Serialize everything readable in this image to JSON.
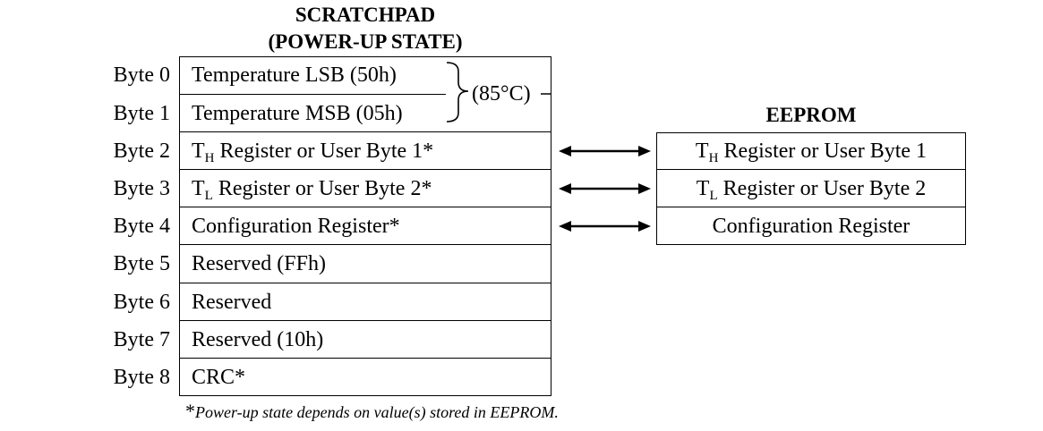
{
  "scratchpad": {
    "title_line1": "SCRATCHPAD",
    "title_line2": "(POWER-UP STATE)",
    "rows": [
      {
        "byte": "Byte 0",
        "text": "Temperature LSB (50h)"
      },
      {
        "byte": "Byte 1",
        "text": "Temperature MSB (05h)"
      },
      {
        "byte": "Byte 2",
        "prefix": "T",
        "sub": "H",
        "text": " Register or User Byte 1*"
      },
      {
        "byte": "Byte 3",
        "prefix": "T",
        "sub": "L",
        "text": " Register or User Byte 2*"
      },
      {
        "byte": "Byte 4",
        "text": "Configuration Register*"
      },
      {
        "byte": "Byte 5",
        "text": "Reserved (FFh)"
      },
      {
        "byte": "Byte 6",
        "text": "Reserved"
      },
      {
        "byte": "Byte 7",
        "text": "Reserved (10h)"
      },
      {
        "byte": "Byte 8",
        "text": "CRC*"
      }
    ],
    "brace_label": "(85°C)"
  },
  "eeprom": {
    "title": "EEPROM",
    "rows": [
      {
        "prefix": "T",
        "sub": "H",
        "text": " Register or User Byte 1"
      },
      {
        "prefix": "T",
        "sub": "L",
        "text": " Register or User Byte 2"
      },
      {
        "text": "Configuration Register"
      }
    ]
  },
  "footnote": {
    "star": "*",
    "text": "Power-up state depends on value(s) stored in EEPROM."
  }
}
